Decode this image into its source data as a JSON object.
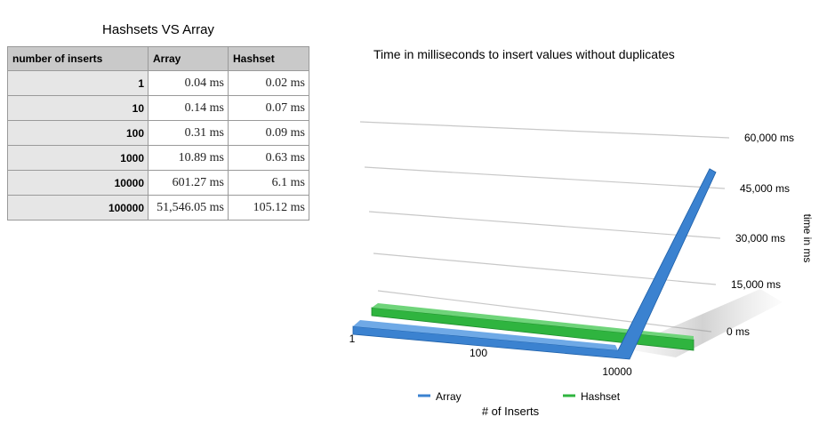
{
  "table": {
    "title": "Hashsets VS Array",
    "headers": [
      "number of inserts",
      "Array",
      "Hashset"
    ],
    "rows": [
      [
        "1",
        "0.04 ms",
        "0.02 ms"
      ],
      [
        "10",
        "0.14 ms",
        "0.07 ms"
      ],
      [
        "100",
        "0.31 ms",
        "0.09 ms"
      ],
      [
        "1000",
        "10.89 ms",
        "0.63 ms"
      ],
      [
        "10000",
        "601.27 ms",
        "6.1 ms"
      ],
      [
        "100000",
        "51,546.05 ms",
        "105.12 ms"
      ]
    ]
  },
  "chart_data": {
    "type": "line",
    "title": "Time in milliseconds to insert values without duplicates",
    "xlabel": "# of Inserts",
    "ylabel": "time in ms",
    "x_tick_labels": [
      "1",
      "100",
      "10000"
    ],
    "y_tick_labels": [
      "0 ms",
      "15,000 ms",
      "30,000 ms",
      "45,000 ms",
      "60,000 ms"
    ],
    "y_ticks": [
      0,
      15000,
      30000,
      45000,
      60000
    ],
    "ylim": [
      0,
      60000
    ],
    "x": [
      1,
      10,
      100,
      1000,
      10000,
      100000
    ],
    "series": [
      {
        "name": "Array",
        "values": [
          0.04,
          0.14,
          0.31,
          10.89,
          601.27,
          51546.05
        ],
        "color": "#3b82d0"
      },
      {
        "name": "Hashset",
        "values": [
          0.02,
          0.07,
          0.09,
          0.63,
          6.1,
          105.12
        ],
        "color": "#2fb43f"
      }
    ],
    "grid": true,
    "legend": "bottom"
  }
}
